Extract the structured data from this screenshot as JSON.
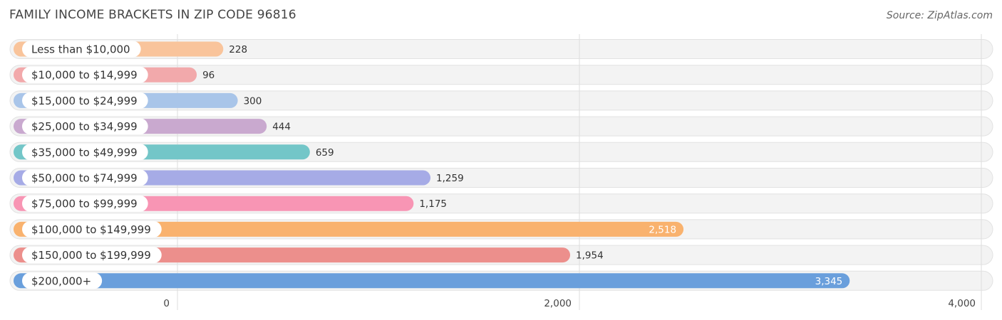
{
  "header": {
    "title": "FAMILY INCOME BRACKETS IN ZIP CODE 96816",
    "source": "Source: ZipAtlas.com"
  },
  "chart_data": {
    "type": "bar",
    "orientation": "horizontal",
    "title": "FAMILY INCOME BRACKETS IN ZIP CODE 96816",
    "xlabel": "",
    "ylabel": "",
    "categories": [
      "Less than $10,000",
      "$10,000 to $14,999",
      "$15,000 to $24,999",
      "$25,000 to $34,999",
      "$35,000 to $49,999",
      "$50,000 to $74,999",
      "$75,000 to $99,999",
      "$100,000 to $149,999",
      "$150,000 to $199,999",
      "$200,000+"
    ],
    "values": [
      228,
      96,
      300,
      444,
      659,
      1259,
      1175,
      2518,
      1954,
      3345
    ],
    "value_labels": [
      "228",
      "96",
      "300",
      "444",
      "659",
      "1,259",
      "1,175",
      "2,518",
      "1,954",
      "3,345"
    ],
    "colors": [
      "#f9c49b",
      "#f2a9ab",
      "#a9c5e9",
      "#c9a9cf",
      "#73c6c8",
      "#a6abe6",
      "#f895b4",
      "#f9b26e",
      "#ec8f8c",
      "#6a9fdc"
    ],
    "xlim": [
      0,
      4000
    ],
    "xticks": [
      0,
      2000,
      4000
    ],
    "xtick_labels": [
      "0",
      "2,000",
      "4,000"
    ],
    "grid": true,
    "legend": "none"
  }
}
